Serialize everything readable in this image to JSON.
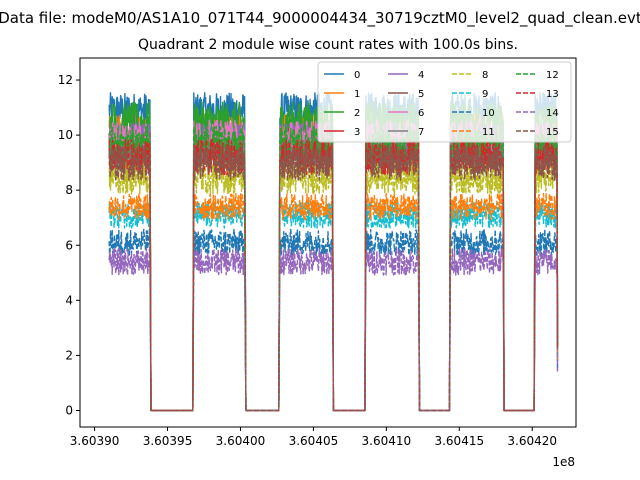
{
  "chart_data": {
    "type": "line",
    "suptitle": "Data file: modeM0/AS1A10_071T44_9000004434_30719cztM0_level2_quad_clean.evt",
    "title": "Quadrant 2 module wise count rates with 100.0s bins.",
    "xlabel": "",
    "ylabel": "",
    "x_offset_label": "1e8",
    "xlim": [
      3.60389,
      3.60423
    ],
    "ylim": [
      -0.6,
      12.8
    ],
    "x_tick_values": [
      3.6039,
      3.60395,
      3.604,
      3.60405,
      3.6041,
      3.60415,
      3.6042
    ],
    "x_tick_labels": [
      "3.60390",
      "3.60395",
      "3.60400",
      "3.60405",
      "3.60410",
      "3.60415",
      "3.60420"
    ],
    "y_tick_values": [
      0,
      2,
      4,
      6,
      8,
      10,
      12
    ],
    "y_tick_labels": [
      "0",
      "2",
      "4",
      "6",
      "8",
      "10",
      "12"
    ],
    "legend_position": "top-right",
    "segments": [
      {
        "start": 3.60391,
        "end": 3.603938
      },
      {
        "start": 3.603968,
        "end": 3.604003
      },
      {
        "start": 3.604027,
        "end": 3.604063
      },
      {
        "start": 3.604086,
        "end": 3.604122
      },
      {
        "start": 3.604144,
        "end": 3.60418
      },
      {
        "start": 3.604202,
        "end": 3.604217
      }
    ],
    "series": [
      {
        "name": "0",
        "color": "#1f77b4",
        "dash": "solid",
        "level": 10.9,
        "noise": 0.4
      },
      {
        "name": "1",
        "color": "#ff7f0e",
        "dash": "solid",
        "level": 10.0,
        "noise": 0.5
      },
      {
        "name": "2",
        "color": "#2ca02c",
        "dash": "solid",
        "level": 10.4,
        "noise": 0.5
      },
      {
        "name": "3",
        "color": "#d62728",
        "dash": "solid",
        "level": 9.6,
        "noise": 0.4
      },
      {
        "name": "4",
        "color": "#9467bd",
        "dash": "solid",
        "level": 9.8,
        "noise": 0.4
      },
      {
        "name": "5",
        "color": "#8c564b",
        "dash": "solid",
        "level": 9.4,
        "noise": 0.4
      },
      {
        "name": "6",
        "color": "#e377c2",
        "dash": "solid",
        "level": 9.9,
        "noise": 0.4
      },
      {
        "name": "7",
        "color": "#7f7f7f",
        "dash": "solid",
        "level": 9.3,
        "noise": 0.4
      },
      {
        "name": "8",
        "color": "#bcbd22",
        "dash": "dashed",
        "level": 8.5,
        "noise": 0.4
      },
      {
        "name": "9",
        "color": "#17becf",
        "dash": "dashed",
        "level": 7.1,
        "noise": 0.3
      },
      {
        "name": "10",
        "color": "#1f77b4",
        "dash": "dashed",
        "level": 6.1,
        "noise": 0.3
      },
      {
        "name": "11",
        "color": "#ff7f0e",
        "dash": "dashed",
        "level": 7.4,
        "noise": 0.3
      },
      {
        "name": "12",
        "color": "#2ca02c",
        "dash": "dashed",
        "level": 9.7,
        "noise": 0.4
      },
      {
        "name": "13",
        "color": "#d62728",
        "dash": "dashed",
        "level": 9.2,
        "noise": 0.4
      },
      {
        "name": "14",
        "color": "#9467bd",
        "dash": "dashed",
        "level": 5.4,
        "noise": 0.3
      },
      {
        "name": "15",
        "color": "#8c564b",
        "dash": "dashed",
        "level": 9.0,
        "noise": 0.4
      }
    ]
  }
}
